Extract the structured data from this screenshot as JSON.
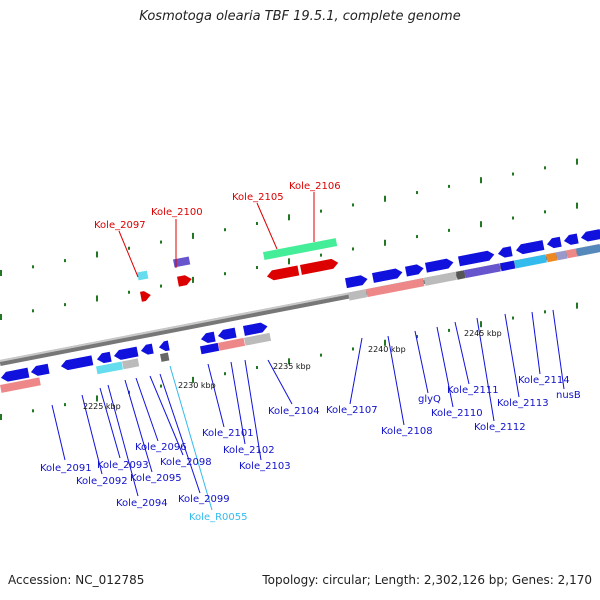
{
  "title": "Kosmotoga olearia TBF 19.5.1, complete genome",
  "accession": "Accession: NC_012785",
  "summary": "Topology: circular; Length: 2,302,126 bp; Genes: 2,170",
  "colors": {
    "backbone": "#8a8a8a",
    "gene_forward": "#1111dd",
    "gene_highlight": "#dd0000",
    "rna_label": "#33bbee",
    "tick": "#227722",
    "cyan_track": "#66ddee",
    "pink_track": "#ee8888",
    "green_track": "#44ee99"
  },
  "scale_labels": [
    "2225 kbp",
    "2230 kbp",
    "2235 kbp",
    "2240 kbp",
    "2245 kbp"
  ],
  "highlighted_genes": [
    "Kole_2097",
    "Kole_2100",
    "Kole_2105",
    "Kole_2106"
  ],
  "gene_labels": [
    "Kole_2091",
    "Kole_2092",
    "Kole_2093",
    "Kole_2094",
    "Kole_2095",
    "Kole_2096",
    "Kole_2098",
    "Kole_2099",
    "Kole_R0055",
    "Kole_2101",
    "Kole_2102",
    "Kole_2103",
    "Kole_2104",
    "Kole_2107",
    "Kole_2108",
    "glyQ",
    "Kole_2110",
    "Kole_2111",
    "Kole_2112",
    "Kole_2113",
    "Kole_2114",
    "nusB"
  ]
}
